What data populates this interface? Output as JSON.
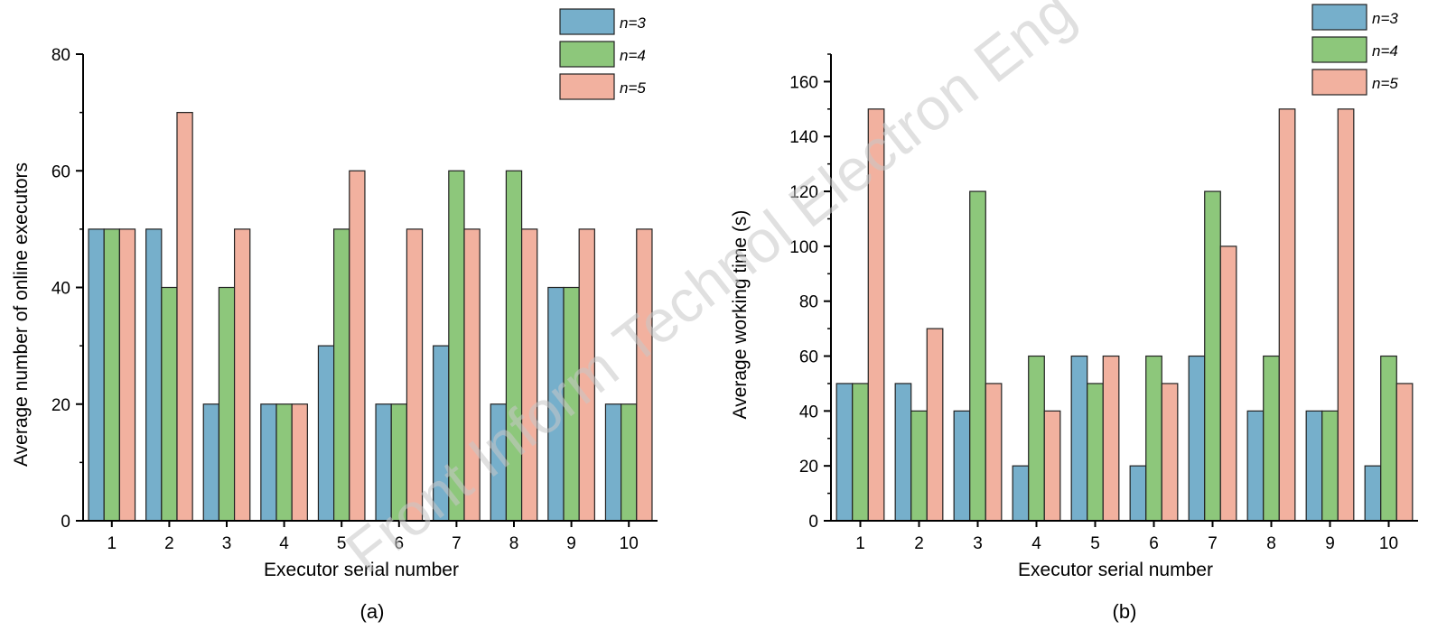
{
  "watermark": "Front Inform Technol Electron Eng",
  "chart_data": [
    {
      "type": "bar",
      "panel_label": "(a)",
      "xlabel": "Executor serial number",
      "ylabel": "Average number of online executors",
      "categories": [
        "1",
        "2",
        "3",
        "4",
        "5",
        "6",
        "7",
        "8",
        "9",
        "10"
      ],
      "series": [
        {
          "name": "n=3",
          "color": "#76afcb",
          "values": [
            50,
            50,
            20,
            20,
            30,
            20,
            30,
            20,
            40,
            20
          ]
        },
        {
          "name": "n=4",
          "color": "#8dc77b",
          "values": [
            50,
            40,
            40,
            20,
            50,
            20,
            60,
            60,
            40,
            20
          ]
        },
        {
          "name": "n=5",
          "color": "#f2b19f",
          "values": [
            50,
            70,
            50,
            20,
            60,
            50,
            50,
            50,
            50,
            50
          ]
        }
      ],
      "ylim": [
        0,
        80
      ],
      "yticks": [
        0,
        20,
        40,
        60,
        80
      ],
      "grid": false,
      "legend_position": "top-right"
    },
    {
      "type": "bar",
      "panel_label": "(b)",
      "xlabel": "Executor serial number",
      "ylabel": "Average working time (s)",
      "categories": [
        "1",
        "2",
        "3",
        "4",
        "5",
        "6",
        "7",
        "8",
        "9",
        "10"
      ],
      "series": [
        {
          "name": "n=3",
          "color": "#76afcb",
          "values": [
            50,
            50,
            40,
            20,
            60,
            20,
            60,
            40,
            40,
            20
          ]
        },
        {
          "name": "n=4",
          "color": "#8dc77b",
          "values": [
            50,
            40,
            120,
            60,
            50,
            60,
            120,
            60,
            40,
            60
          ]
        },
        {
          "name": "n=5",
          "color": "#f2b19f",
          "values": [
            150,
            70,
            50,
            40,
            60,
            50,
            100,
            150,
            150,
            50
          ]
        }
      ],
      "ylim": [
        0,
        170
      ],
      "yticks": [
        0,
        20,
        40,
        60,
        80,
        100,
        120,
        140,
        160
      ],
      "grid": false,
      "legend_position": "top-right"
    }
  ]
}
